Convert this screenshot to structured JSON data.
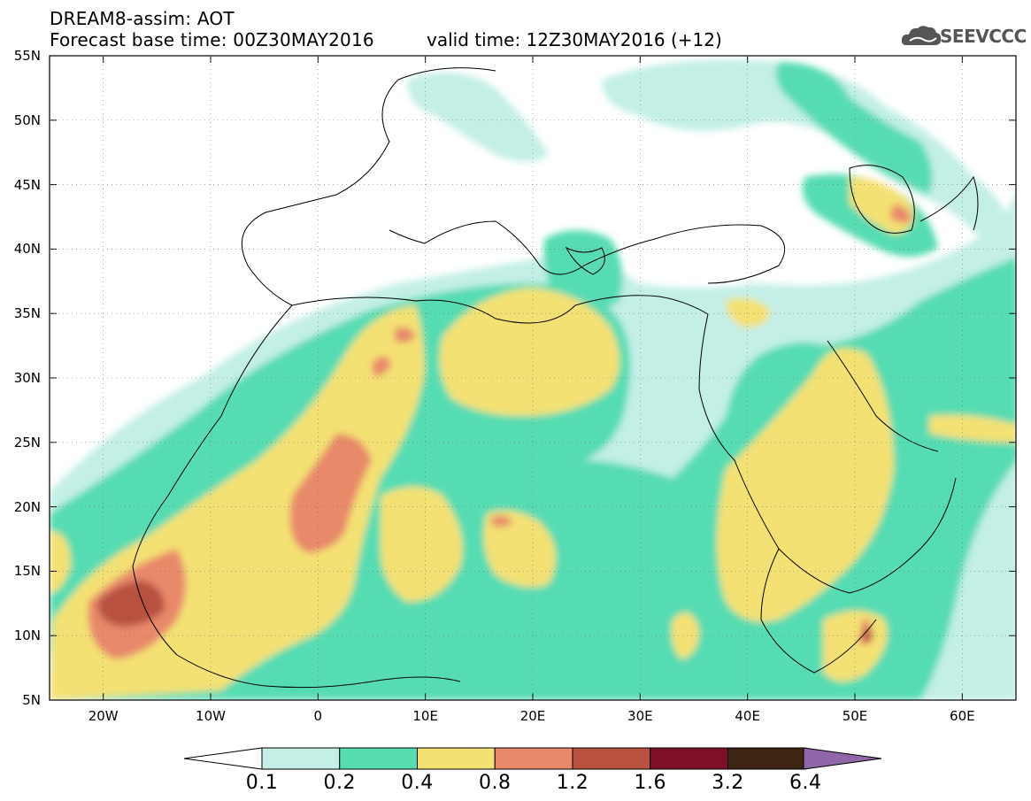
{
  "header": {
    "title": "DREAM8-assim: AOT",
    "base_time": "Forecast base time: 00Z30MAY2016",
    "valid_time": "valid time: 12Z30MAY2016 (+12)",
    "logo_text": "SEEVCCC"
  },
  "map": {
    "lon_range": [
      -25,
      65
    ],
    "lat_range": [
      5,
      55
    ],
    "lat_labels": [
      "55N",
      "50N",
      "45N",
      "40N",
      "35N",
      "30N",
      "25N",
      "20N",
      "15N",
      "10N",
      "5N"
    ],
    "lon_labels": [
      "20W",
      "10W",
      "0",
      "10E",
      "20E",
      "30E",
      "40E",
      "50E",
      "60E"
    ]
  },
  "colorbar": {
    "labels": [
      "0.1",
      "0.2",
      "0.4",
      "0.8",
      "1.2",
      "1.6",
      "3.2",
      "6.4"
    ],
    "colors": [
      "#ffffff",
      "#c3efe6",
      "#57dcb2",
      "#f4e173",
      "#e8896a",
      "#b8513f",
      "#7d0f29",
      "#3e2412",
      "#8f67a8"
    ]
  }
}
